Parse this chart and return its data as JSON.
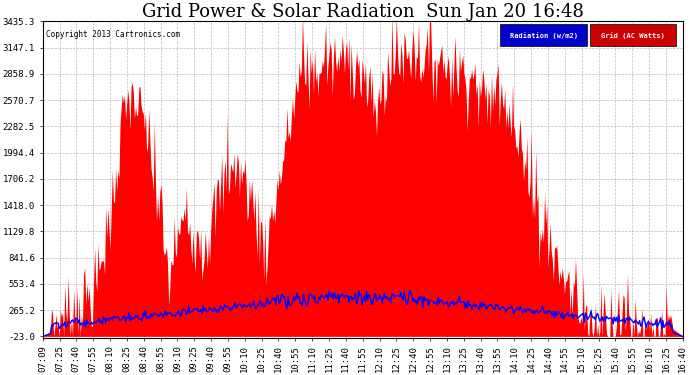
{
  "title": "Grid Power & Solar Radiation  Sun Jan 20 16:48",
  "copyright": "Copyright 2013 Cartronics.com",
  "legend_labels": [
    "Radiation (w/m2)",
    "Grid (AC Watts)"
  ],
  "legend_bg_colors": [
    "#0000cc",
    "#cc0000"
  ],
  "y_ticks": [
    3435.3,
    3147.1,
    2858.9,
    2570.7,
    2282.5,
    1994.4,
    1706.2,
    1418.0,
    1129.8,
    841.6,
    553.4,
    265.2,
    -23.0
  ],
  "y_min": -23.0,
  "y_max": 3435.3,
  "background_color": "#ffffff",
  "plot_bg_color": "#ffffff",
  "grid_color": "#bbbbbb",
  "fill_color": "#ff0000",
  "line_color": "#0000ff",
  "title_fontsize": 13,
  "tick_fontsize": 6.5,
  "x_tick_labels": [
    "07:09",
    "07:25",
    "07:40",
    "07:55",
    "08:10",
    "08:25",
    "08:40",
    "08:55",
    "09:10",
    "09:25",
    "09:40",
    "09:55",
    "10:10",
    "10:25",
    "10:40",
    "10:55",
    "11:10",
    "11:25",
    "11:40",
    "11:55",
    "12:10",
    "12:25",
    "12:40",
    "12:55",
    "13:10",
    "13:25",
    "13:40",
    "13:55",
    "14:10",
    "14:25",
    "14:40",
    "14:55",
    "15:10",
    "15:25",
    "15:40",
    "15:55",
    "16:10",
    "16:25",
    "16:40"
  ]
}
